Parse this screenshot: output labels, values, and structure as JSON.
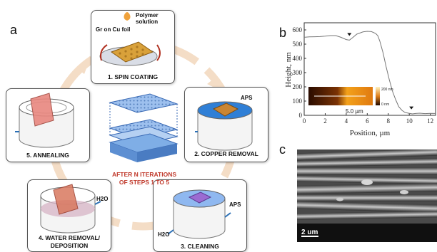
{
  "panel_a": {
    "letter": "a",
    "steps": [
      {
        "label": "1. SPIN COATING"
      },
      {
        "label": "2. COPPER REMOVAL"
      },
      {
        "label": "3. CLEANING"
      },
      {
        "label": "4. WATER REMOVAL/"
      },
      {
        "label": "DEPOSITION"
      },
      {
        "label": "5. ANNEALING"
      }
    ],
    "annotations": {
      "polymer": "Polymer",
      "solution": "solution",
      "gr_on_cu": "Gr on Cu foil",
      "aps1": "APS",
      "aps2": "APS",
      "h2o_in": "H2O",
      "h2o_out": "H2O"
    },
    "center_line1": "AFTER N ITERATIONS",
    "center_line2": "OF STEPS 1 TO 5"
  },
  "panel_b": {
    "letter": "b",
    "ylabel": "Height, nm",
    "xlabel": "Position, µm",
    "inset_scale": "5.0 µm",
    "inset_colorbar_top": "200 nm",
    "inset_colorbar_bottom": "0 nm"
  },
  "panel_c": {
    "letter": "c",
    "scale_bar": "2 um"
  },
  "chart_data": {
    "type": "line",
    "xlabel": "Position, µm",
    "ylabel": "Height, nm",
    "xlim": [
      0,
      12.5
    ],
    "ylim": [
      0,
      650
    ],
    "xticks": [
      0,
      2,
      4,
      6,
      8,
      10,
      12
    ],
    "yticks": [
      0,
      100,
      200,
      300,
      400,
      500,
      600
    ],
    "series": [
      {
        "x": [
          0,
          0.5,
          1,
          1.5,
          2,
          2.5,
          3,
          3.5,
          4,
          4.3,
          4.6,
          5,
          5.3,
          5.6,
          6,
          6.4,
          6.8,
          7,
          7.2,
          7.5,
          7.8,
          8.1,
          8.4,
          8.7,
          9,
          9.3,
          9.6,
          10,
          10.3,
          10.6,
          11,
          11.5,
          12,
          12.5
        ],
        "y": [
          548,
          551,
          552,
          553,
          556,
          560,
          560,
          548,
          532,
          528,
          545,
          570,
          578,
          586,
          590,
          588,
          575,
          560,
          520,
          440,
          340,
          250,
          170,
          110,
          60,
          35,
          20,
          14,
          10,
          13,
          15,
          12,
          14,
          13
        ]
      }
    ],
    "markers": [
      {
        "x": 4.3,
        "y": 528
      },
      {
        "x": 10.2,
        "y": 12
      }
    ]
  }
}
